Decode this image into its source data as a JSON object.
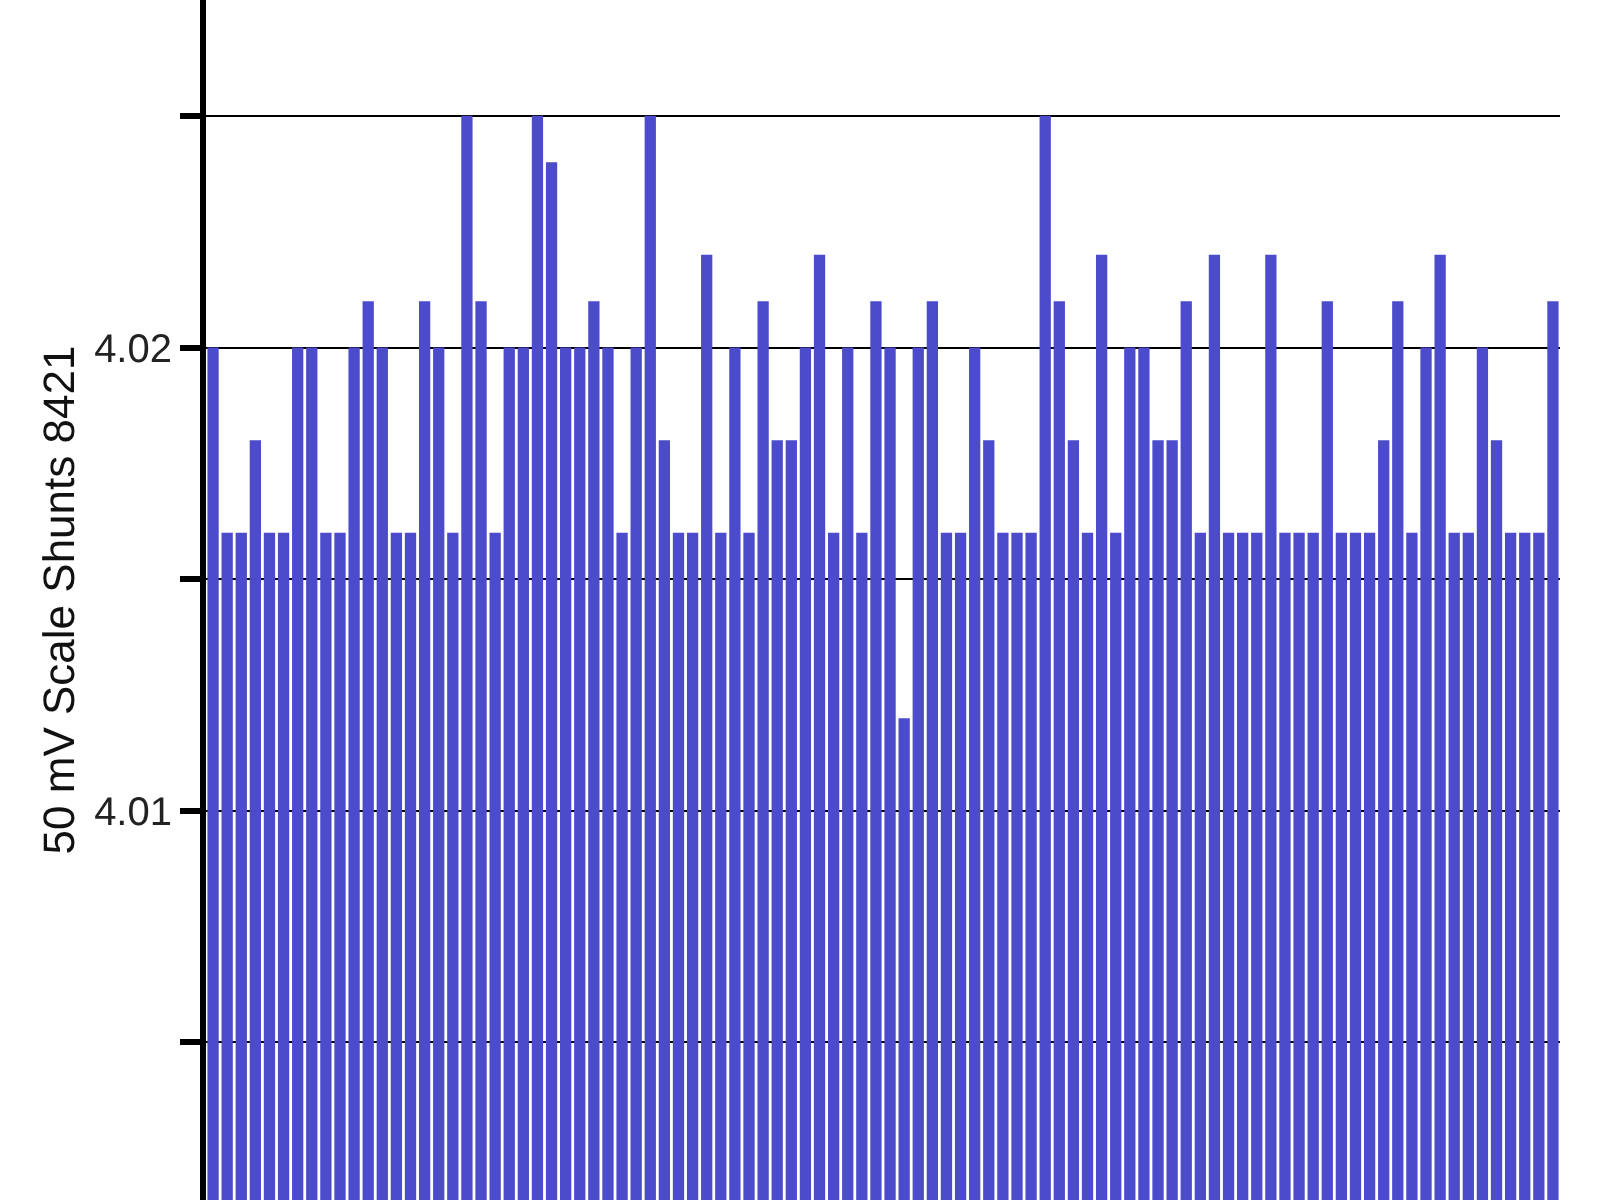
{
  "chart_data": {
    "type": "bar",
    "ylabel": "50 mV Scale Shunts 8421",
    "categories": [
      null,
      null,
      null,
      null,
      null,
      null,
      null,
      null,
      null,
      null,
      null,
      null,
      null,
      null,
      null,
      null,
      null,
      null,
      null,
      null,
      null,
      null,
      null,
      null,
      null,
      null,
      null,
      null,
      null,
      null,
      null,
      null,
      null,
      null,
      null,
      null,
      null,
      null,
      null,
      null,
      null,
      null,
      null,
      null,
      null,
      null,
      null,
      null,
      null,
      null,
      null,
      null,
      null,
      null,
      null,
      null,
      null,
      null,
      null,
      null,
      null,
      null,
      null,
      null,
      null,
      null,
      null,
      null,
      null,
      null,
      null,
      null,
      null,
      null,
      null,
      null,
      null,
      null,
      null,
      null,
      null,
      null,
      null,
      null,
      null,
      null,
      null,
      null,
      null,
      null,
      null,
      null,
      null,
      null,
      null,
      null
    ],
    "values": [
      4.02,
      4.016,
      4.016,
      4.018,
      4.016,
      4.016,
      4.02,
      4.02,
      4.016,
      4.016,
      4.02,
      4.021,
      4.02,
      4.016,
      4.016,
      4.021,
      4.02,
      4.016,
      4.025,
      4.021,
      4.016,
      4.02,
      4.02,
      4.025,
      4.024,
      4.02,
      4.02,
      4.021,
      4.02,
      4.016,
      4.02,
      4.025,
      4.018,
      4.016,
      4.016,
      4.022,
      4.016,
      4.02,
      4.016,
      4.021,
      4.018,
      4.018,
      4.02,
      4.022,
      4.016,
      4.02,
      4.016,
      4.021,
      4.02,
      4.012,
      4.02,
      4.021,
      4.016,
      4.016,
      4.02,
      4.018,
      4.016,
      4.016,
      4.016,
      4.025,
      4.021,
      4.018,
      4.016,
      4.022,
      4.016,
      4.02,
      4.02,
      4.018,
      4.018,
      4.021,
      4.016,
      4.022,
      4.016,
      4.016,
      4.016,
      4.022,
      4.016,
      4.016,
      4.016,
      4.021,
      4.016,
      4.016,
      4.016,
      4.018,
      4.021,
      4.016,
      4.02,
      4.022,
      4.016,
      4.016,
      4.02,
      4.018,
      4.016,
      4.016,
      4.016,
      4.021
    ],
    "color": "#4b4bcc",
    "ylim": [
      4.0016,
      4.0275
    ],
    "yticks": [
      {
        "value": 4.005,
        "label": null
      },
      {
        "value": 4.01,
        "label": "4.01"
      },
      {
        "value": 4.015,
        "label": null
      },
      {
        "value": 4.02,
        "label": "4.02"
      },
      {
        "value": 4.025,
        "label": null
      }
    ],
    "grid": "y",
    "tick_labels": "y"
  }
}
